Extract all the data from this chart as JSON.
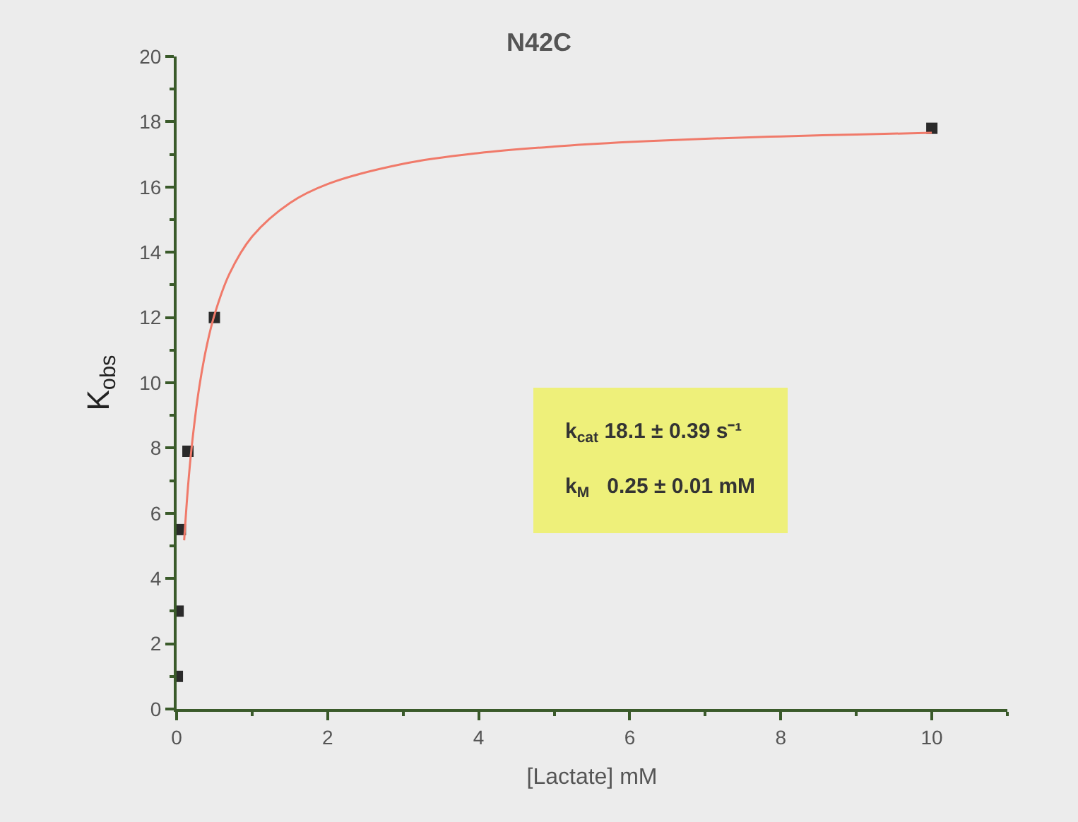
{
  "chart_data": {
    "type": "scatter",
    "title": "N42C",
    "xlabel": "[Lactate] mM",
    "ylabel": "K$_{obs}$",
    "xlim": [
      0,
      11
    ],
    "xticks": [
      0,
      2,
      4,
      6,
      8,
      10
    ],
    "ylim": [
      0,
      20
    ],
    "yticks": [
      0,
      2,
      4,
      6,
      8,
      10,
      12,
      14,
      16,
      18,
      20
    ],
    "grid": false,
    "series": [
      {
        "marker": "square",
        "color": "#2a2a2a",
        "x": [
          0.01,
          0.02,
          0.05,
          0.15,
          0.5,
          10
        ],
        "values": [
          1.0,
          3.0,
          5.5,
          7.9,
          12.0,
          17.8
        ]
      },
      {
        "type": "line",
        "marker": "none",
        "line_style": "solid",
        "color": "#f07a6a",
        "x": [
          0.1,
          0.15,
          0.2,
          0.3,
          0.4,
          0.5,
          0.7,
          1,
          1.5,
          2,
          3,
          4,
          5,
          6,
          7,
          8,
          9,
          10
        ],
        "values": [
          5.17,
          6.79,
          8.04,
          9.87,
          11.14,
          12.07,
          13.34,
          14.48,
          15.51,
          16.09,
          16.71,
          17.04,
          17.24,
          17.38,
          17.48,
          17.55,
          17.61,
          17.66
        ]
      }
    ],
    "annotations": [
      "k$_{cat}$ 18.1 ± 0.39 s⁻¹",
      "k$_{M}$   0.25 ± 0.01 mM"
    ]
  }
}
